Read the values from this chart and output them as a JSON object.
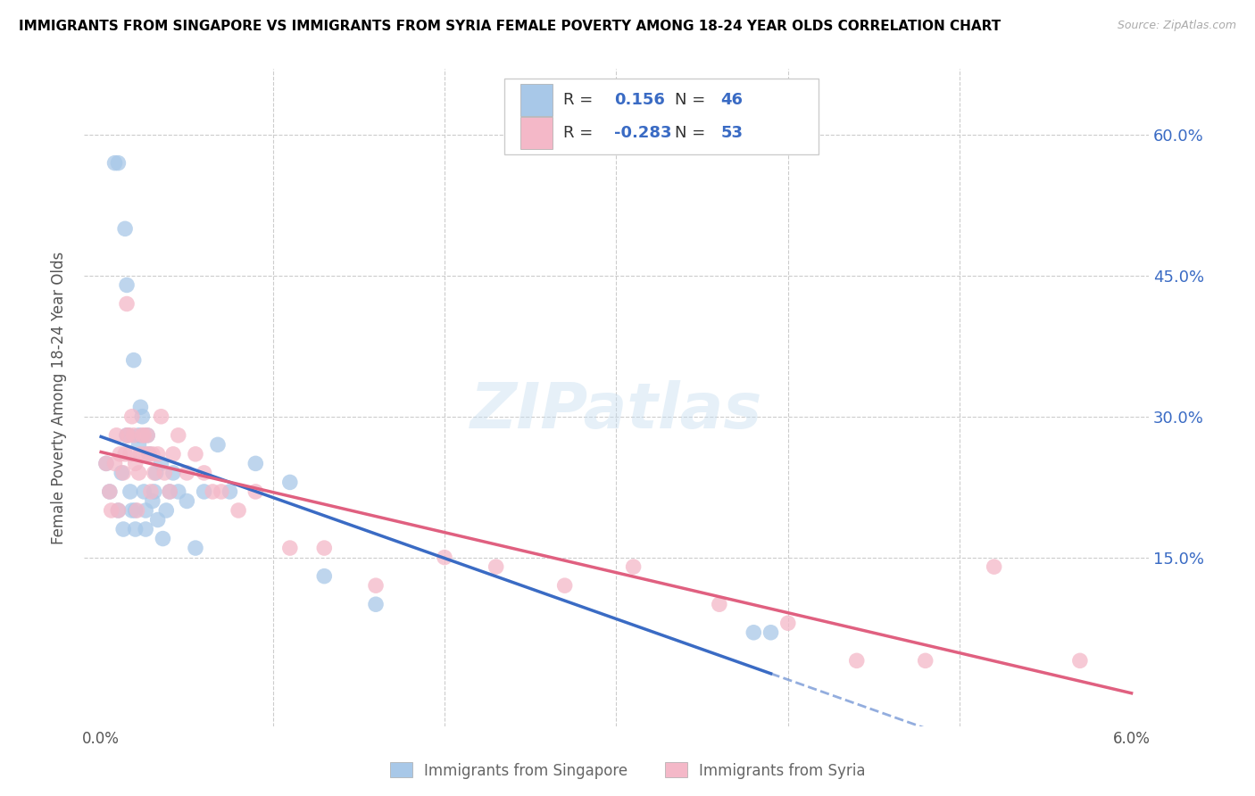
{
  "title": "IMMIGRANTS FROM SINGAPORE VS IMMIGRANTS FROM SYRIA FEMALE POVERTY AMONG 18-24 YEAR OLDS CORRELATION CHART",
  "source": "Source: ZipAtlas.com",
  "ylabel": "Female Poverty Among 18-24 Year Olds",
  "ytick_labels": [
    "15.0%",
    "30.0%",
    "45.0%",
    "60.0%"
  ],
  "ytick_values": [
    0.15,
    0.3,
    0.45,
    0.6
  ],
  "xlim": [
    -0.001,
    0.061
  ],
  "ylim": [
    -0.03,
    0.67
  ],
  "singapore_color": "#a8c8e8",
  "syria_color": "#f4b8c8",
  "singapore_line_color": "#3a6bc4",
  "syria_line_color": "#e06080",
  "singapore_R": 0.156,
  "singapore_N": 46,
  "syria_R": -0.283,
  "syria_N": 53,
  "watermark": "ZIPatlas",
  "legend_box_color": "#cccccc",
  "singapore_x": [
    0.0003,
    0.0005,
    0.0008,
    0.001,
    0.001,
    0.0012,
    0.0013,
    0.0014,
    0.0015,
    0.0015,
    0.0016,
    0.0017,
    0.0018,
    0.0019,
    0.002,
    0.002,
    0.0022,
    0.0022,
    0.0023,
    0.0024,
    0.0025,
    0.0026,
    0.0026,
    0.0027,
    0.0028,
    0.003,
    0.0031,
    0.0032,
    0.0033,
    0.0035,
    0.0036,
    0.0038,
    0.004,
    0.0042,
    0.0045,
    0.005,
    0.0055,
    0.006,
    0.0068,
    0.0075,
    0.009,
    0.011,
    0.013,
    0.016,
    0.038,
    0.039
  ],
  "singapore_y": [
    0.25,
    0.22,
    0.57,
    0.57,
    0.2,
    0.24,
    0.18,
    0.5,
    0.44,
    0.28,
    0.28,
    0.22,
    0.2,
    0.36,
    0.2,
    0.18,
    0.27,
    0.28,
    0.31,
    0.3,
    0.22,
    0.2,
    0.18,
    0.28,
    0.26,
    0.21,
    0.22,
    0.24,
    0.19,
    0.25,
    0.17,
    0.2,
    0.22,
    0.24,
    0.22,
    0.21,
    0.16,
    0.22,
    0.27,
    0.22,
    0.25,
    0.23,
    0.13,
    0.1,
    0.07,
    0.07
  ],
  "syria_x": [
    0.0003,
    0.0005,
    0.0006,
    0.0008,
    0.0009,
    0.001,
    0.0011,
    0.0013,
    0.0014,
    0.0015,
    0.0015,
    0.0016,
    0.0017,
    0.0018,
    0.0019,
    0.002,
    0.0021,
    0.0022,
    0.0023,
    0.0024,
    0.0025,
    0.0026,
    0.0027,
    0.0028,
    0.0029,
    0.003,
    0.0031,
    0.0033,
    0.0035,
    0.0037,
    0.004,
    0.0042,
    0.0045,
    0.005,
    0.0055,
    0.006,
    0.0065,
    0.007,
    0.008,
    0.009,
    0.011,
    0.013,
    0.016,
    0.02,
    0.023,
    0.027,
    0.031,
    0.036,
    0.04,
    0.044,
    0.048,
    0.052,
    0.057
  ],
  "syria_y": [
    0.25,
    0.22,
    0.2,
    0.25,
    0.28,
    0.2,
    0.26,
    0.24,
    0.26,
    0.42,
    0.28,
    0.28,
    0.26,
    0.3,
    0.28,
    0.25,
    0.2,
    0.24,
    0.26,
    0.28,
    0.28,
    0.26,
    0.28,
    0.26,
    0.22,
    0.26,
    0.24,
    0.26,
    0.3,
    0.24,
    0.22,
    0.26,
    0.28,
    0.24,
    0.26,
    0.24,
    0.22,
    0.22,
    0.2,
    0.22,
    0.16,
    0.16,
    0.12,
    0.15,
    0.14,
    0.12,
    0.14,
    0.1,
    0.08,
    0.04,
    0.04,
    0.14,
    0.04
  ]
}
